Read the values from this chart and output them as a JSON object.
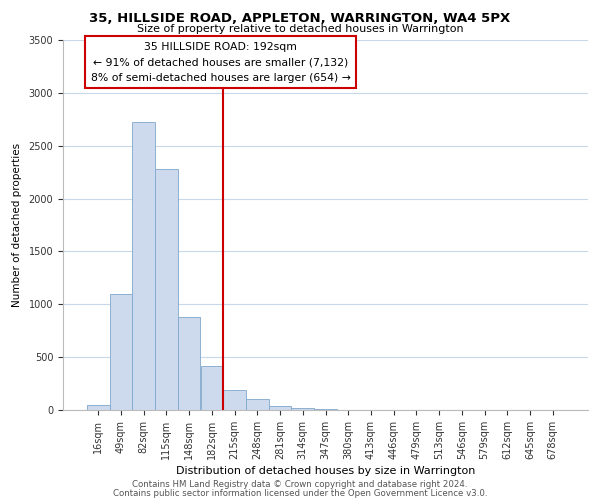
{
  "title": "35, HILLSIDE ROAD, APPLETON, WARRINGTON, WA4 5PX",
  "subtitle": "Size of property relative to detached houses in Warrington",
  "xlabel": "Distribution of detached houses by size in Warrington",
  "ylabel": "Number of detached properties",
  "bar_color": "#cdd9ec",
  "bar_edge_color": "#7fa8cc",
  "categories": [
    "16sqm",
    "49sqm",
    "82sqm",
    "115sqm",
    "148sqm",
    "182sqm",
    "215sqm",
    "248sqm",
    "281sqm",
    "314sqm",
    "347sqm",
    "380sqm",
    "413sqm",
    "446sqm",
    "479sqm",
    "513sqm",
    "546sqm",
    "579sqm",
    "612sqm",
    "645sqm",
    "678sqm"
  ],
  "values": [
    45,
    1100,
    2720,
    2280,
    880,
    420,
    185,
    100,
    40,
    20,
    5,
    2,
    1,
    0,
    0,
    0,
    0,
    0,
    0,
    0,
    0
  ],
  "ylim": [
    0,
    3500
  ],
  "yticks": [
    0,
    500,
    1000,
    1500,
    2000,
    2500,
    3000,
    3500
  ],
  "vline_x": 6.0,
  "vline_color": "#cc0000",
  "annotation_title": "35 HILLSIDE ROAD: 192sqm",
  "annotation_line1": "← 91% of detached houses are smaller (7,132)",
  "annotation_line2": "8% of semi-detached houses are larger (654) →",
  "footnote1": "Contains HM Land Registry data © Crown copyright and database right 2024.",
  "footnote2": "Contains public sector information licensed under the Open Government Licence v3.0.",
  "background_color": "#ffffff",
  "grid_color": "#c8d8e8"
}
